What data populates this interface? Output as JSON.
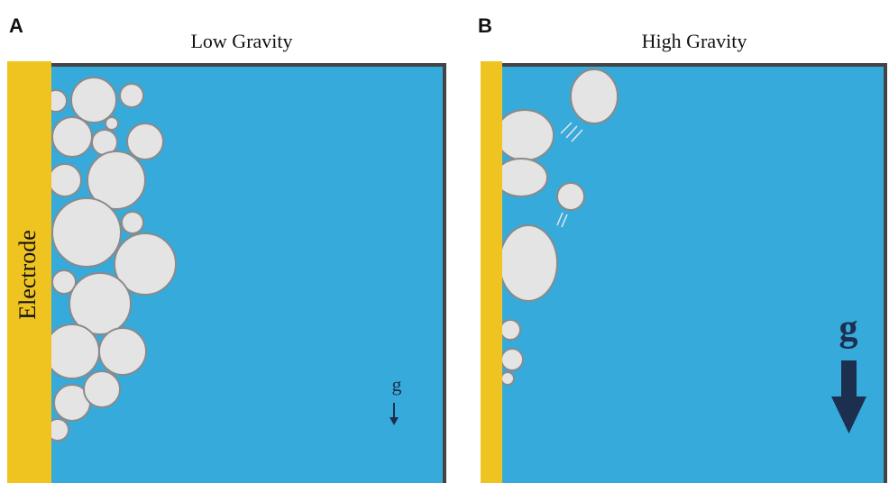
{
  "panels": [
    {
      "label": "A",
      "title": "Low Gravity",
      "electrode_label": "Electrode",
      "gravity_label": "g"
    },
    {
      "label": "B",
      "title": "High Gravity",
      "gravity_label": "g"
    }
  ]
}
